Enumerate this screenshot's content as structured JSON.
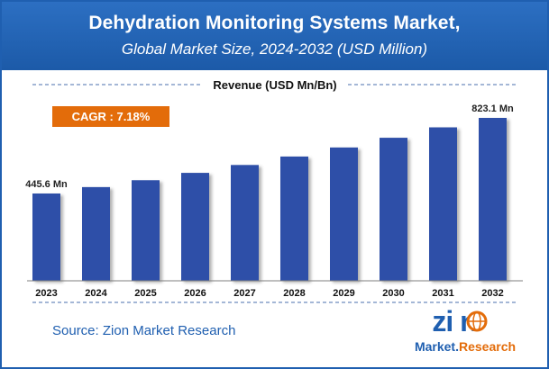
{
  "header": {
    "title": "Dehydration Monitoring Systems Market,",
    "subtitle": "Global Market Size, 2024-2032 (USD Million)"
  },
  "chart_data": {
    "type": "bar",
    "ylabel": "Revenue (USD Mn/Bn)",
    "categories": [
      "2023",
      "2024",
      "2025",
      "2026",
      "2027",
      "2028",
      "2029",
      "2030",
      "2031",
      "2032"
    ],
    "values": [
      445.6,
      477.6,
      511.9,
      548.6,
      588.0,
      630.2,
      675.4,
      723.9,
      775.9,
      823.1
    ],
    "data_labels": [
      {
        "index": 0,
        "text": "445.6 Mn"
      },
      {
        "index": 9,
        "text": "823.1 Mn"
      }
    ],
    "annotation": "CAGR : 7.18%",
    "bar_color": "#2e4fa8",
    "accent_color": "#e36c0a"
  },
  "footer": {
    "source": "Source: Zion Market Research",
    "logo_text_main": "zion",
    "logo_text_sub": "Market.Research"
  }
}
